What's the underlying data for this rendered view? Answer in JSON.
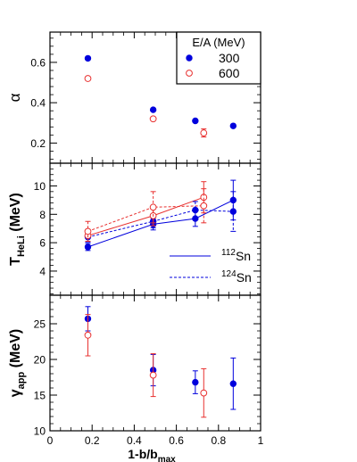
{
  "chart_data": {
    "type": "scatter",
    "shared_x": {
      "label_main": "1-b/b",
      "label_sub": "max",
      "range": [
        0,
        1
      ],
      "ticks": [
        0,
        0.2,
        0.4,
        0.6,
        0.8,
        1
      ],
      "tick_labels": [
        "0",
        "0.2",
        "0.4",
        "0.6",
        "0.8",
        "1"
      ]
    },
    "colors": {
      "e300": "#0000dd",
      "e600": "#e8302f"
    },
    "panels": [
      {
        "id": "alpha",
        "ylabel_main": "α",
        "ylabel_sub": "",
        "ylim": [
          0.1,
          0.75
        ],
        "yticks": [
          0.2,
          0.4,
          0.6
        ],
        "ytick_labels": [
          "0.2",
          "0.4",
          "0.6"
        ],
        "legend": {
          "title": "E/A (MeV)",
          "entries": [
            {
              "label": "300",
              "series": "e300",
              "marker": "filled-circle"
            },
            {
              "label": "600",
              "series": "e600",
              "marker": "open-circle"
            }
          ]
        },
        "series": [
          {
            "key": "e300",
            "marker": "filled-circle",
            "points": [
              {
                "x": 0.18,
                "y": 0.62
              },
              {
                "x": 0.49,
                "y": 0.365
              },
              {
                "x": 0.69,
                "y": 0.31
              },
              {
                "x": 0.87,
                "y": 0.285
              }
            ]
          },
          {
            "key": "e600",
            "marker": "open-circle",
            "points": [
              {
                "x": 0.18,
                "y": 0.52
              },
              {
                "x": 0.49,
                "y": 0.32
              },
              {
                "x": 0.73,
                "y": 0.25,
                "err": 0.02
              }
            ]
          }
        ]
      },
      {
        "id": "thel",
        "ylabel_main": "T",
        "ylabel_sub": "HeLi",
        "ylabel_unit": " (MeV)",
        "ylim": [
          2.3,
          11.6
        ],
        "yticks": [
          4,
          6,
          8,
          10
        ],
        "ytick_labels": [
          "4",
          "6",
          "8",
          "10"
        ],
        "legend": {
          "entries": [
            {
              "label_sup": "112",
              "label": "Sn",
              "line": "solid"
            },
            {
              "label_sup": "124",
              "label": "Sn",
              "line": "dashed"
            }
          ]
        },
        "series": [
          {
            "key": "e300",
            "marker": "filled-circle",
            "line": "solid",
            "points": [
              {
                "x": 0.18,
                "y": 5.7,
                "err": 0.25
              },
              {
                "x": 0.49,
                "y": 7.3,
                "err": 0.4
              },
              {
                "x": 0.69,
                "y": 7.7,
                "err": 0.55
              },
              {
                "x": 0.87,
                "y": 9.0,
                "err": 1.4
              }
            ]
          },
          {
            "key": "e300",
            "marker": "filled-circle",
            "line": "dashed",
            "points": [
              {
                "x": 0.18,
                "y": 6.4,
                "err": 0.35
              },
              {
                "x": 0.49,
                "y": 7.5,
                "err": 0.45
              },
              {
                "x": 0.69,
                "y": 8.3,
                "err": 0.6
              },
              {
                "x": 0.87,
                "y": 8.2,
                "err": 1.4
              }
            ]
          },
          {
            "key": "e600",
            "marker": "open-circle",
            "line": "solid",
            "points": [
              {
                "x": 0.18,
                "y": 6.5,
                "err": 0.4
              },
              {
                "x": 0.49,
                "y": 7.9,
                "err": 0.7
              },
              {
                "x": 0.73,
                "y": 9.2,
                "err": 1.1
              }
            ]
          },
          {
            "key": "e600",
            "marker": "open-circle",
            "line": "dashed",
            "points": [
              {
                "x": 0.18,
                "y": 6.8,
                "err": 0.7
              },
              {
                "x": 0.49,
                "y": 8.5,
                "err": 1.1
              },
              {
                "x": 0.73,
                "y": 8.6,
                "err": 1.2
              }
            ]
          }
        ]
      },
      {
        "id": "gamma",
        "ylabel_main": "γ",
        "ylabel_sub": "app",
        "ylabel_unit": " (MeV)",
        "ylim": [
          10,
          29
        ],
        "yticks": [
          10,
          15,
          20,
          25
        ],
        "ytick_labels": [
          "10",
          "15",
          "20",
          "25"
        ],
        "series": [
          {
            "key": "e300",
            "marker": "filled-circle",
            "points": [
              {
                "x": 0.18,
                "y": 25.7,
                "err": 1.7
              },
              {
                "x": 0.49,
                "y": 18.5,
                "err": 2.2
              },
              {
                "x": 0.69,
                "y": 16.8,
                "err": 1.6
              },
              {
                "x": 0.87,
                "y": 16.6,
                "err": 3.6
              }
            ]
          },
          {
            "key": "e600",
            "marker": "open-circle",
            "points": [
              {
                "x": 0.18,
                "y": 23.4,
                "err": 2.9
              },
              {
                "x": 0.49,
                "y": 17.8,
                "err": 3.0
              },
              {
                "x": 0.73,
                "y": 15.3,
                "err": 3.4
              }
            ]
          }
        ]
      }
    ]
  }
}
